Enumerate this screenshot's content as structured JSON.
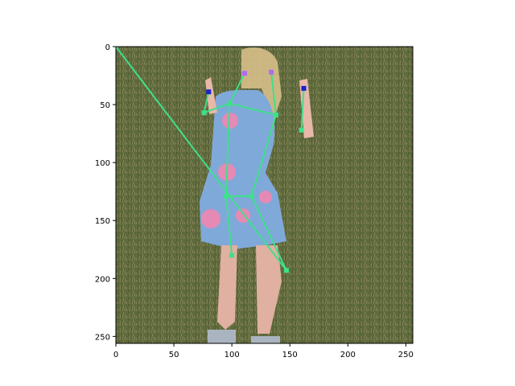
{
  "chart_data": {
    "type": "scatter",
    "image_extent": {
      "x": [
        0,
        256
      ],
      "y": [
        256,
        0
      ]
    },
    "xlim": [
      0,
      256
    ],
    "ylim": [
      256,
      0
    ],
    "xticks": [
      0,
      50,
      100,
      150,
      200,
      250
    ],
    "yticks": [
      0,
      50,
      100,
      150,
      200,
      250
    ],
    "grid": false,
    "colors": {
      "skeleton": "#3fe08a",
      "joint": "#3fe08a",
      "head_joint": "#b06cf0",
      "wrist_joint": "#1a22c8",
      "photo_grass": "#5e6a3c",
      "dress": "#7fa9d9"
    },
    "keypoints": [
      {
        "x": 0,
        "y": 0
      },
      {
        "x": 111,
        "y": 23
      },
      {
        "x": 134,
        "y": 22
      },
      {
        "x": 80,
        "y": 39
      },
      {
        "x": 162,
        "y": 36
      },
      {
        "x": 98,
        "y": 49
      },
      {
        "x": 76,
        "y": 57
      },
      {
        "x": 138,
        "y": 59
      },
      {
        "x": 160,
        "y": 72
      },
      {
        "x": 95,
        "y": 129
      },
      {
        "x": 117,
        "y": 129
      },
      {
        "x": 100,
        "y": 180
      },
      {
        "x": 147,
        "y": 193
      }
    ],
    "segments": [
      [
        0,
        12
      ],
      [
        1,
        5
      ],
      [
        2,
        7
      ],
      [
        3,
        6
      ],
      [
        4,
        8
      ],
      [
        5,
        6
      ],
      [
        5,
        7
      ],
      [
        5,
        9
      ],
      [
        7,
        10
      ],
      [
        9,
        10
      ],
      [
        9,
        11
      ],
      [
        10,
        12
      ]
    ]
  }
}
